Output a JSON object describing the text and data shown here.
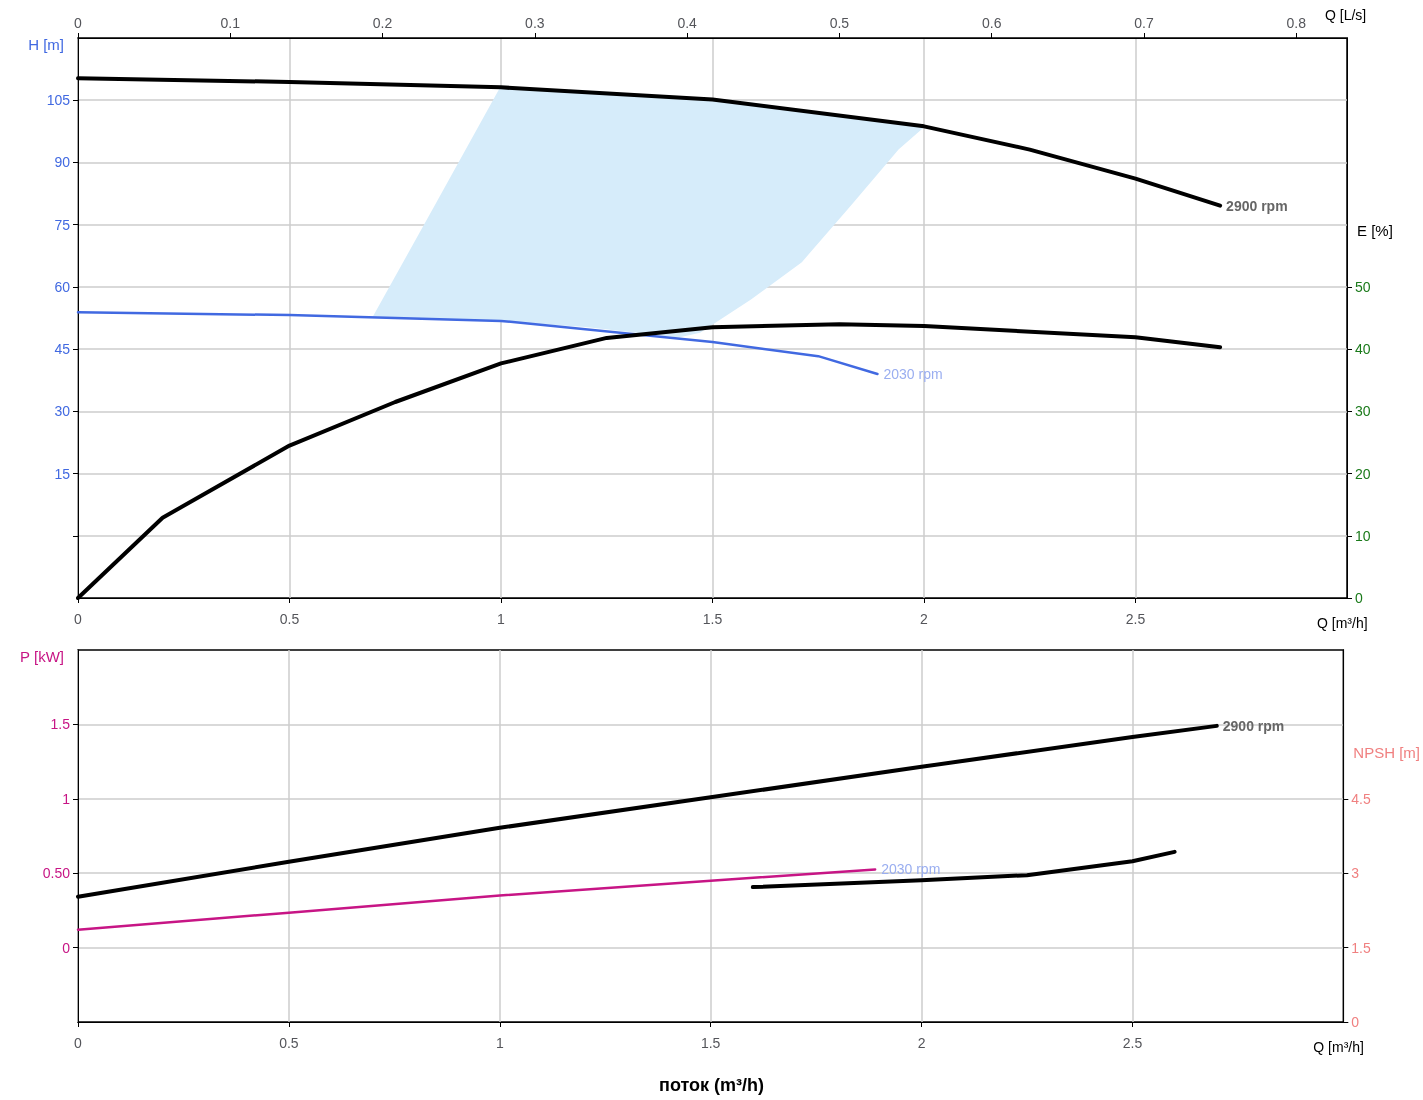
{
  "chart_data": [
    {
      "type": "line",
      "xlabel": "Q [m³/h]",
      "x2label": "Q [L/s]",
      "ylabel": "H [m]",
      "y2label": "E [%]",
      "xlim": [
        0,
        3
      ],
      "xticks": [
        0,
        0.5,
        1,
        1.5,
        2,
        2.5
      ],
      "x2lim": [
        0,
        0.8333
      ],
      "x2ticks": [
        0,
        0.1,
        0.2,
        0.3,
        0.4,
        0.5,
        0.6,
        0.7,
        0.8
      ],
      "ylim": [
        -15,
        120
      ],
      "yticks": [
        {
          "value": 0,
          "label": null
        },
        15,
        30,
        45,
        60,
        75,
        90,
        105
      ],
      "y2lim": [
        0,
        90
      ],
      "y2ticks": [
        0,
        10,
        20,
        30,
        40,
        50
      ],
      "grid": true,
      "marker": "none",
      "series": [
        {
          "type": "area",
          "color": "#d6ecfa",
          "x": [
            0.7,
            0.85,
            1.0,
            1.2,
            1.42,
            1.47,
            1.59,
            1.71,
            1.825,
            1.94,
            2.0,
            1.94,
            1.825,
            1.71,
            1.59,
            1.47,
            1.42,
            1.2,
            1.0,
            0.85,
            0.7
          ],
          "values": [
            53.0,
            80.5,
            108.1,
            107.0,
            105.8,
            105.4,
            104.3,
            102.5,
            100.9,
            99.6,
            98.7,
            93.4,
            79.6,
            66.1,
            57.1,
            49.1,
            48.0,
            50.5,
            51.8,
            52.5,
            53.0
          ]
        },
        {
          "name": "2900 rpm",
          "color": "#000000",
          "x": [
            0,
            0.5,
            1,
            1.5,
            2,
            2.25,
            2.5,
            2.7
          ],
          "values": [
            110.3,
            109.4,
            108.1,
            105.2,
            98.7,
            93.1,
            86.1,
            79.6
          ]
        },
        {
          "name": "2030 rpm",
          "color": "#4169e1",
          "x": [
            0,
            0.5,
            1,
            1.5,
            1.75,
            1.89
          ],
          "values": [
            53.9,
            53.2,
            51.8,
            46.7,
            43.3,
            39.0
          ]
        },
        {
          "color": "#000000",
          "axis": "y2",
          "x": [
            0,
            0.2,
            0.5,
            0.75,
            1,
            1.25,
            1.5,
            1.8,
            2,
            2.5,
            2.7
          ],
          "values": [
            0,
            12.9,
            24.5,
            31.5,
            37.7,
            41.8,
            43.5,
            44.0,
            43.7,
            41.9,
            40.3
          ]
        }
      ]
    },
    {
      "type": "line",
      "xlabel": "Q [m³/h]",
      "ylabel": "P [kW]",
      "y2label": "NPSH [m]",
      "xlim": [
        0,
        3
      ],
      "xticks": [
        0,
        0.5,
        1,
        1.5,
        2,
        2.5
      ],
      "ylim": [
        -0.5,
        2
      ],
      "yticks": [
        0,
        {
          "value": 0.5,
          "label": "0.50"
        },
        1,
        1.5
      ],
      "y2lim": [
        0,
        7.5
      ],
      "y2ticks": [
        0,
        1.5,
        3,
        4.5
      ],
      "grid": true,
      "marker": "none",
      "annotations": [
        "поток (m³/h)"
      ],
      "series": [
        {
          "name": "2900 rpm",
          "color": "#000000",
          "x": [
            0,
            0.5,
            1,
            1.5,
            2,
            2.5,
            2.7
          ],
          "values": [
            0.342,
            0.577,
            0.805,
            1.01,
            1.215,
            1.416,
            1.49
          ]
        },
        {
          "name": "2030 rpm",
          "color": "#c71585",
          "x": [
            0,
            0.5,
            1,
            1.5,
            1.89
          ],
          "values": [
            0.12,
            0.235,
            0.35,
            0.45,
            0.525
          ]
        },
        {
          "color": "#000000",
          "axis": "y2",
          "x": [
            1.6,
            2,
            2.25,
            2.5,
            2.6
          ],
          "values": [
            2.72,
            2.86,
            2.96,
            3.24,
            3.43
          ]
        }
      ]
    }
  ]
}
